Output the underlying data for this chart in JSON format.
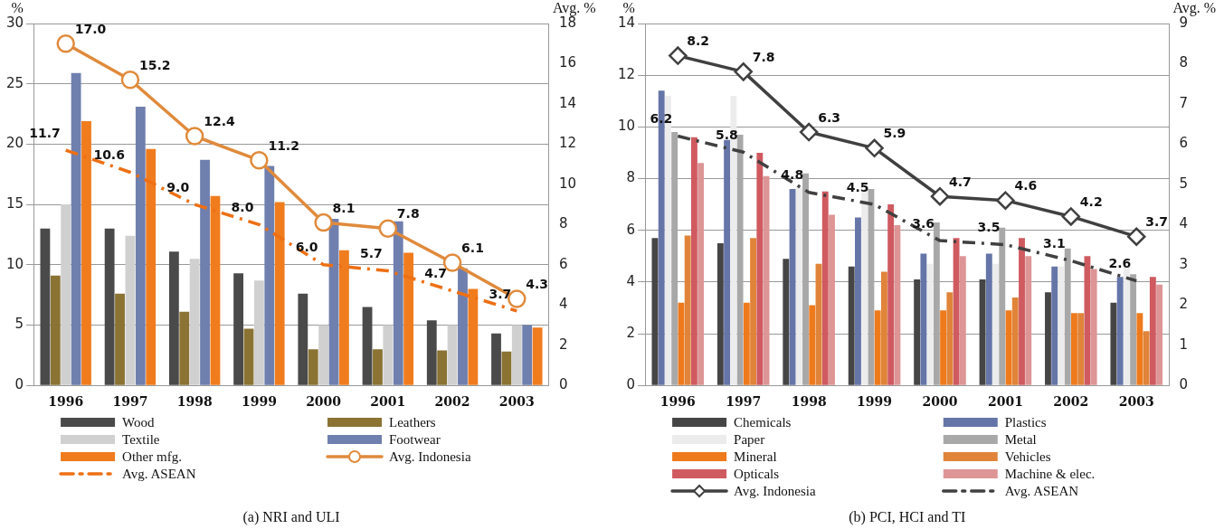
{
  "chart_data": [
    {
      "type": "bar",
      "title": "(a) NRI and ULI",
      "ylabel": "%",
      "y2label": "Avg. %",
      "categories": [
        "1996",
        "1997",
        "1998",
        "1999",
        "2000",
        "2001",
        "2002",
        "2003"
      ],
      "ylim": [
        0,
        30
      ],
      "yticks": [
        0,
        5,
        10,
        15,
        20,
        25,
        30
      ],
      "y2lim": [
        0,
        18
      ],
      "y2ticks": [
        0,
        2,
        4,
        6,
        8,
        10,
        12,
        14,
        16,
        18
      ],
      "grid": "y",
      "legend": "bottom",
      "series": [
        {
          "name": "Wood",
          "color": "#4a4a4a",
          "values": [
            13,
            13,
            11.1,
            9.3,
            7.6,
            6.5,
            5.4,
            4.3
          ]
        },
        {
          "name": "Leathers",
          "color": "#8a7333",
          "values": [
            9.1,
            7.6,
            6.1,
            4.7,
            3.0,
            3.0,
            2.9,
            2.8
          ]
        },
        {
          "name": "Textile",
          "color": "#d0d0d0",
          "values": [
            15,
            12.4,
            10.5,
            8.7,
            5.0,
            5.0,
            5.0,
            5.0
          ]
        },
        {
          "name": "Footwear",
          "color": "#6f7fae",
          "values": [
            25.9,
            23.1,
            18.7,
            18.2,
            13.8,
            13.6,
            9.7,
            5.0
          ]
        },
        {
          "name": "Other mfg.",
          "color": "#f07c1e",
          "values": [
            21.9,
            19.6,
            15.7,
            15.2,
            11.2,
            11.0,
            8.0,
            4.8
          ]
        },
        {
          "name": "Avg. Indonesia",
          "type": "line",
          "axis": "y2",
          "color": "#e08a3c",
          "marker": "circle",
          "line_style": "solid",
          "values": [
            17.0,
            15.2,
            12.4,
            11.2,
            8.1,
            7.8,
            6.1,
            4.3
          ],
          "value_labels": [
            "17.0",
            "15.2",
            "12.4",
            "11.2",
            "8.1",
            "7.8",
            "6.1",
            "4.3"
          ]
        },
        {
          "name": "Avg. ASEAN",
          "type": "line",
          "axis": "y2",
          "color": "#ee6f14",
          "marker": "none",
          "line_style": "dashed",
          "values": [
            11.7,
            10.6,
            9.0,
            8.0,
            6.0,
            5.7,
            4.7,
            3.7
          ],
          "value_labels": [
            "11.7",
            "10.6",
            "9.0",
            "8.0",
            "6.0",
            "5.7",
            "4.7",
            "3.7"
          ]
        }
      ]
    },
    {
      "type": "bar",
      "title": "(b) PCI, HCI and TI",
      "ylabel": "%",
      "y2label": "Avg. %",
      "categories": [
        "1996",
        "1997",
        "1998",
        "1999",
        "2000",
        "2001",
        "2002",
        "2003"
      ],
      "ylim": [
        0,
        14
      ],
      "yticks": [
        0,
        2,
        4,
        6,
        8,
        10,
        12,
        14
      ],
      "y2lim": [
        0,
        9
      ],
      "y2ticks": [
        0,
        1,
        2,
        3,
        4,
        5,
        6,
        7,
        8,
        9
      ],
      "grid": "y",
      "legend": "bottom",
      "series": [
        {
          "name": "Chemicals",
          "color": "#454545",
          "values": [
            5.7,
            5.5,
            4.9,
            4.6,
            4.1,
            4.1,
            3.6,
            3.2
          ]
        },
        {
          "name": "Plastics",
          "color": "#6575a8",
          "values": [
            11.4,
            9.5,
            7.6,
            6.5,
            5.1,
            5.1,
            4.6,
            4.2
          ]
        },
        {
          "name": "Paper",
          "color": "#ececec",
          "values": [
            11.2,
            11.2,
            7.7,
            7.6,
            4.7,
            4.7,
            4.6,
            4.6
          ]
        },
        {
          "name": "Metal",
          "color": "#a8a8a8",
          "values": [
            9.8,
            9.7,
            8.2,
            7.6,
            6.3,
            6.1,
            5.3,
            4.3
          ]
        },
        {
          "name": "Mineral",
          "color": "#ee7a1c",
          "values": [
            3.2,
            3.2,
            3.1,
            2.9,
            2.9,
            2.9,
            2.8,
            2.8
          ]
        },
        {
          "name": "Vehicles",
          "color": "#e0843a",
          "values": [
            5.8,
            5.7,
            4.7,
            4.4,
            3.6,
            3.4,
            2.8,
            2.1
          ]
        },
        {
          "name": "Opticals",
          "color": "#cf5a60",
          "values": [
            9.6,
            9.0,
            7.5,
            7.0,
            5.7,
            5.7,
            5.0,
            4.2
          ]
        },
        {
          "name": "Machine & elec.",
          "color": "#dd9596",
          "values": [
            8.6,
            8.1,
            6.6,
            6.2,
            5.0,
            5.0,
            4.5,
            3.9
          ]
        },
        {
          "name": "Avg. Indonesia",
          "type": "line",
          "axis": "y2",
          "color": "#404040",
          "marker": "diamond",
          "line_style": "solid",
          "values": [
            8.2,
            7.8,
            6.3,
            5.9,
            4.7,
            4.6,
            4.2,
            3.7
          ],
          "value_labels": [
            "8.2",
            "7.8",
            "6.3",
            "5.9",
            "4.7",
            "4.6",
            "4.2",
            "3.7"
          ]
        },
        {
          "name": "Avg. ASEAN",
          "type": "line",
          "axis": "y2",
          "color": "#404040",
          "marker": "none",
          "line_style": "dashed",
          "values": [
            6.2,
            5.8,
            4.8,
            4.5,
            3.6,
            3.5,
            3.1,
            2.6
          ],
          "value_labels": [
            "6.2",
            "5.8",
            "4.8",
            "4.5",
            "3.6",
            "3.5",
            "3.1",
            "2.6"
          ]
        }
      ]
    }
  ]
}
